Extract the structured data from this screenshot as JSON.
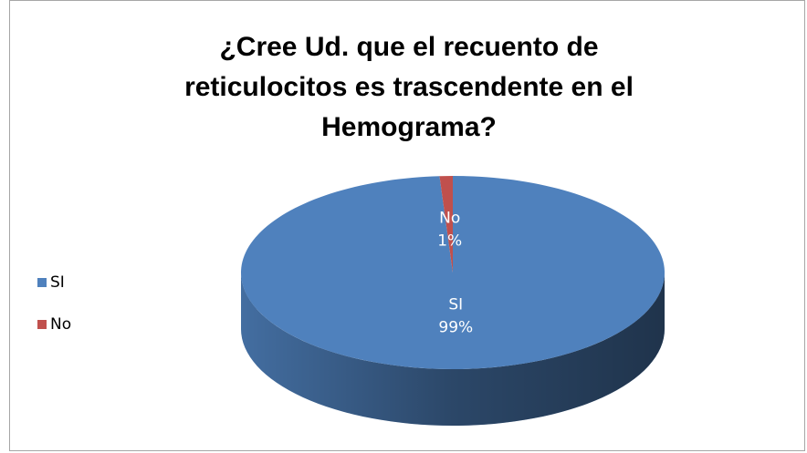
{
  "chart_data": {
    "type": "pie3d",
    "title": "¿Cree Ud. que el recuento de reticulocitos es trascendente en el Hemograma?",
    "categories": [
      "SI",
      "No"
    ],
    "values": [
      99,
      1
    ],
    "value_labels": [
      "99%",
      "1%"
    ],
    "colors": [
      "#4f81bd",
      "#c0504d"
    ],
    "legend": "left"
  }
}
